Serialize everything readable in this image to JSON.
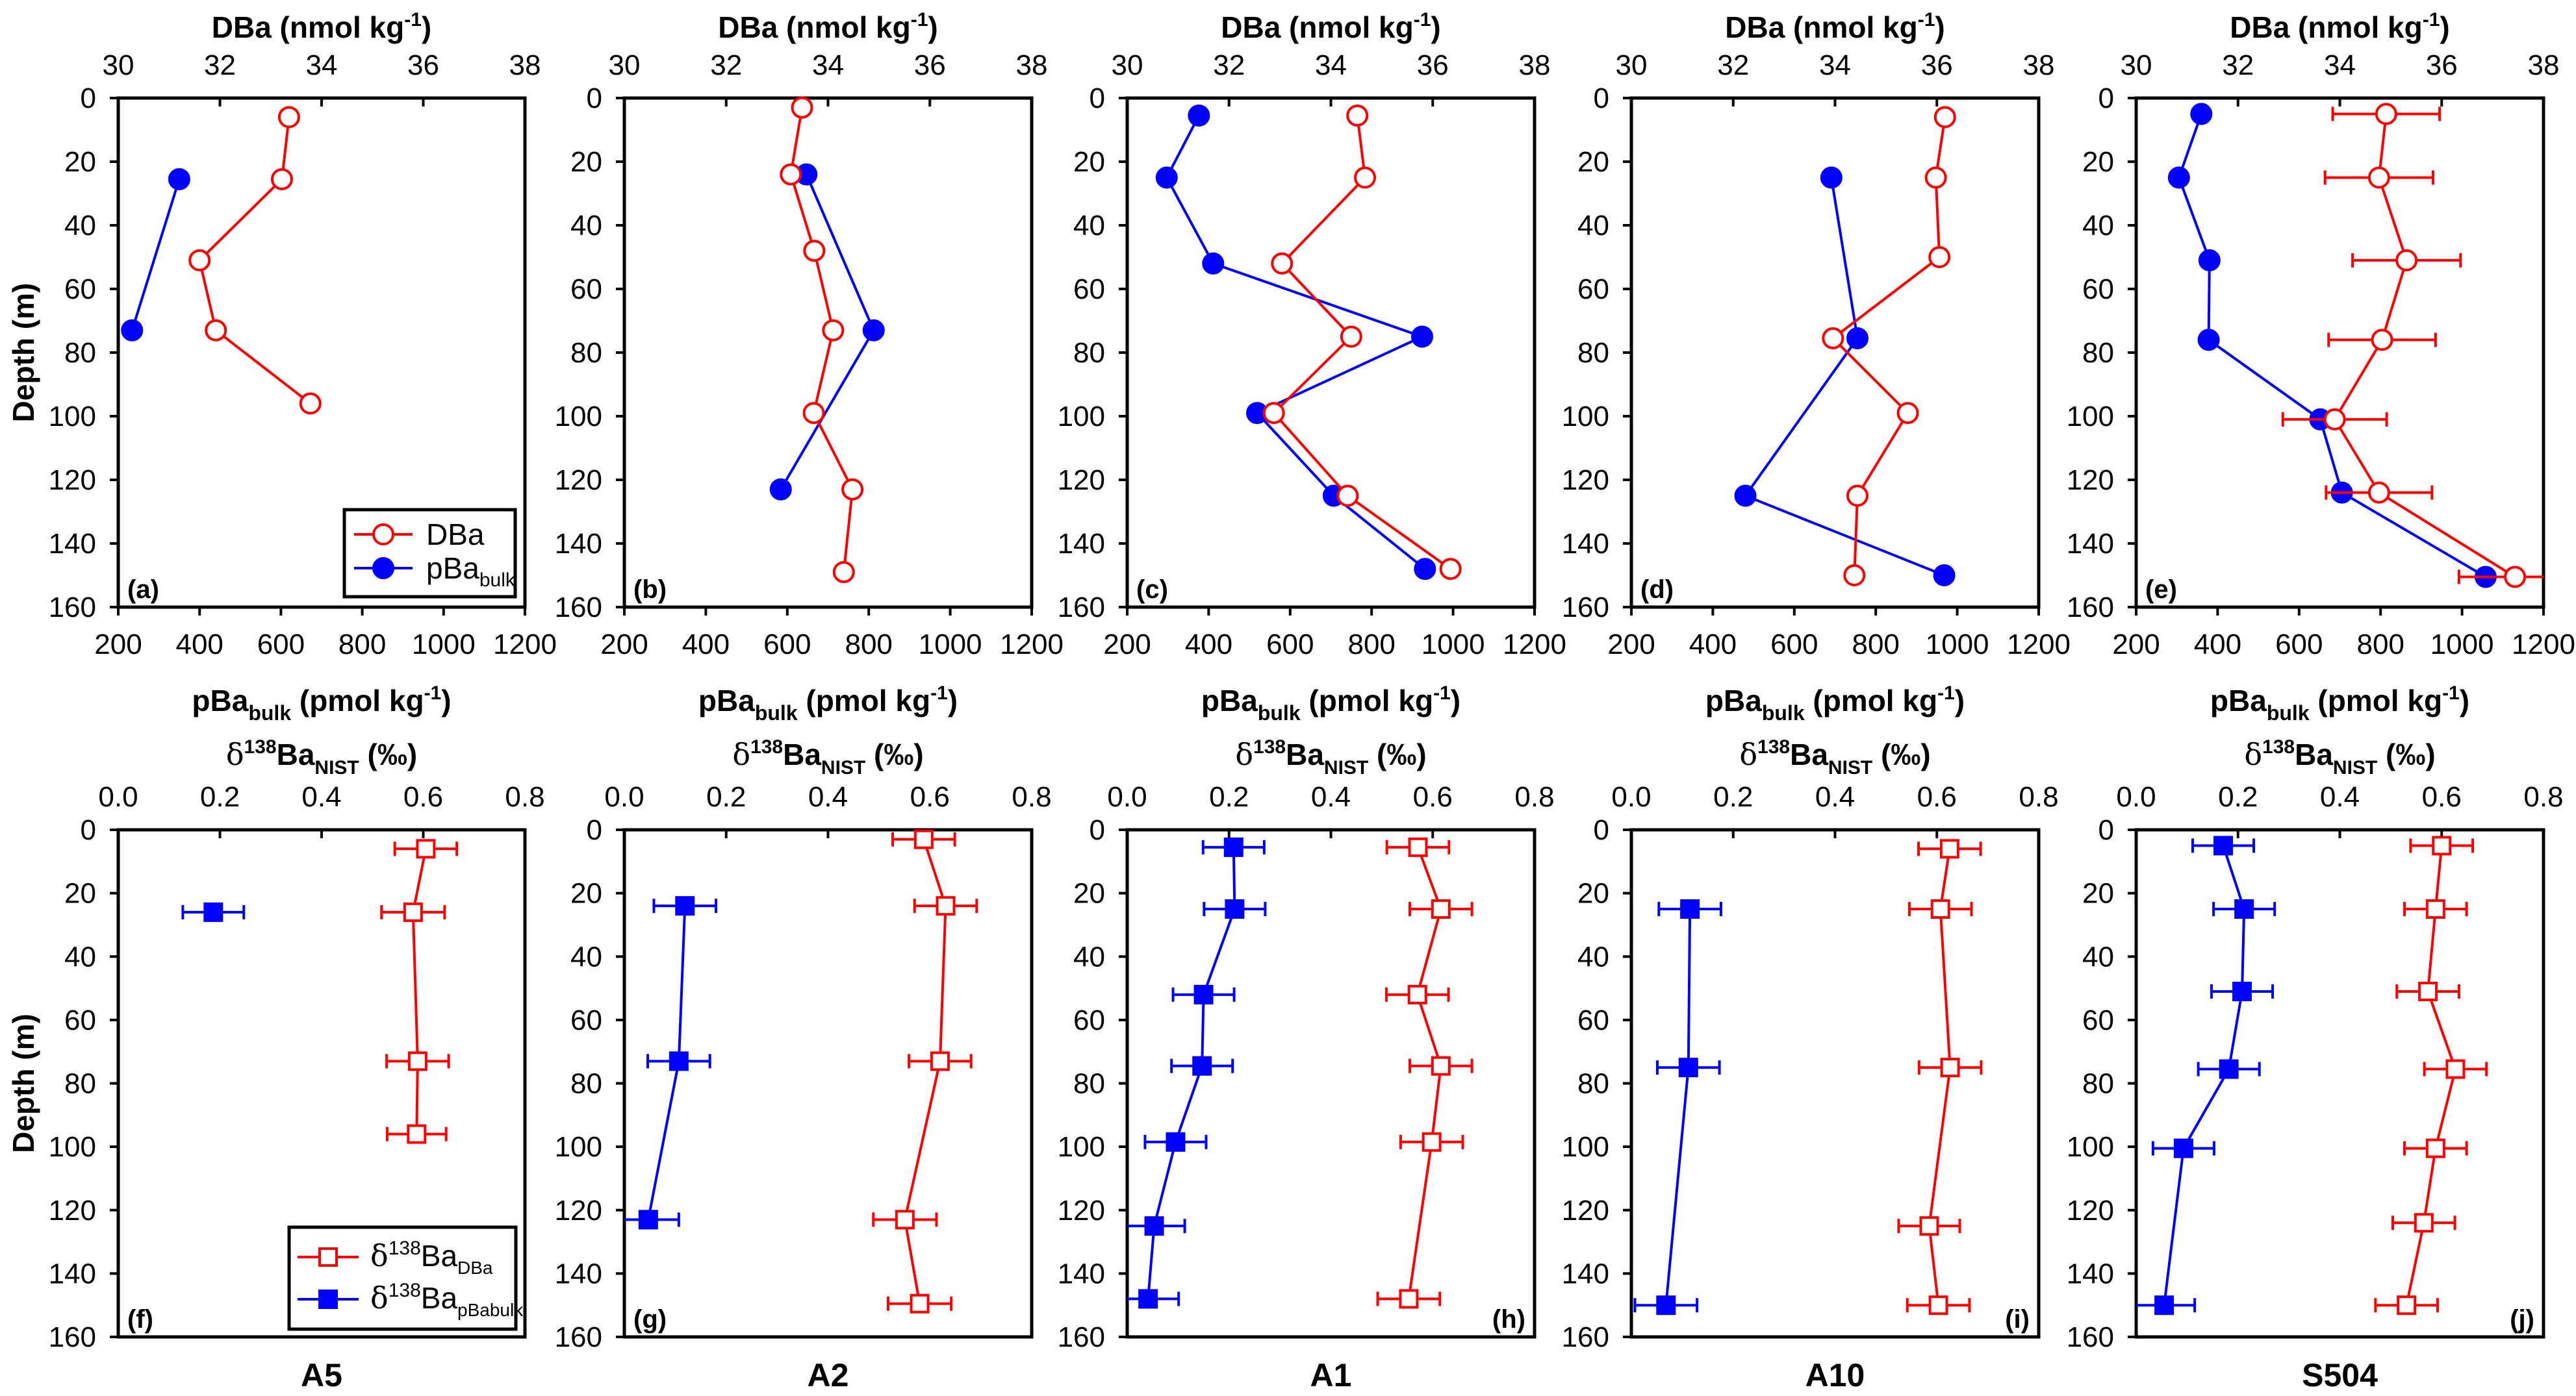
{
  "figure": {
    "ylabel": "Depth (m)",
    "top_row": {
      "top_axis_title": "DBa (nmol kg⁻¹)",
      "top_axis_title_main": "DBa (nmol kg",
      "top_axis_title_sup": "-1",
      "top_axis_title_end": ")",
      "bottom_axis_title_main": "pBa",
      "bottom_axis_title_sub": "bulk",
      "bottom_axis_title_rest": " (pmol kg",
      "bottom_axis_title_sup": "-1",
      "bottom_axis_title_end": ")",
      "legend": [
        {
          "label": "DBa",
          "sub": "",
          "color": "#ff0000",
          "marker": "open-circle"
        },
        {
          "label": "pBa",
          "sub": "bulk",
          "color": "#0000ff",
          "marker": "filled-circle"
        }
      ]
    },
    "bottom_row": {
      "top_axis_title_delta": "δ",
      "top_axis_title_sup": "138",
      "top_axis_title_main": "Ba",
      "top_axis_title_sub": "NIST",
      "top_axis_title_end": " (‰)",
      "legend": [
        {
          "delta": "δ",
          "sup": "138",
          "label": "Ba",
          "sub": "DBa",
          "color": "#ff0000",
          "marker": "open-square"
        },
        {
          "delta": "δ",
          "sup": "138",
          "label": "Ba",
          "sub": "pBabulk",
          "color": "#0000ff",
          "marker": "filled-square"
        }
      ]
    },
    "stations": [
      "A5",
      "A2",
      "A1",
      "A10",
      "S504"
    ]
  },
  "chart_data": [
    {
      "panel": "(a)",
      "station": "A5",
      "type": "line",
      "title": "",
      "xlabel_top": "DBa (nmol kg-1)",
      "xlabel_bottom": "pBa_bulk (pmol kg-1)",
      "ylabel": "Depth (m)",
      "xlim_top": [
        30,
        38
      ],
      "xticks_top": [
        "30",
        "32",
        "34",
        "36",
        "38"
      ],
      "xlim_bottom": [
        200,
        1200
      ],
      "xticks_bottom": [
        "200",
        "400",
        "600",
        "800",
        "1000",
        "1200"
      ],
      "ylim": [
        160,
        0
      ],
      "yticks": [
        "0",
        "20",
        "40",
        "60",
        "80",
        "100",
        "120",
        "140",
        "160"
      ],
      "legend_position": "bottom-right",
      "series": [
        {
          "name": "DBa",
          "axis": "top",
          "depth": [
            6,
            25.5,
            51,
            73,
            96
          ],
          "values": [
            33.36,
            33.22,
            31.6,
            31.92,
            33.78
          ],
          "errors": null
        },
        {
          "name": "pBa_bulk",
          "axis": "bottom",
          "depth": [
            25.5,
            73
          ],
          "values": [
            350,
            234
          ],
          "errors": null
        }
      ]
    },
    {
      "panel": "(b)",
      "station": "A2",
      "type": "line",
      "xlim_top": [
        30,
        38
      ],
      "xticks_top": [
        "30",
        "32",
        "34",
        "36",
        "38"
      ],
      "xlim_bottom": [
        200,
        1200
      ],
      "xticks_bottom": [
        "200",
        "400",
        "600",
        "800",
        "1000",
        "1200"
      ],
      "ylim": [
        160,
        0
      ],
      "yticks": [
        "0",
        "20",
        "40",
        "60",
        "80",
        "100",
        "120",
        "140",
        "160"
      ],
      "series": [
        {
          "name": "DBa",
          "axis": "top",
          "depth": [
            3,
            24,
            48,
            73,
            99,
            123,
            149
          ],
          "values": [
            33.49,
            33.27,
            33.73,
            34.1,
            33.72,
            34.48,
            34.31
          ],
          "errors": null
        },
        {
          "name": "pBa_bulk",
          "axis": "bottom",
          "depth": [
            24,
            73,
            123
          ],
          "values": [
            647,
            812,
            584
          ],
          "errors": null
        }
      ]
    },
    {
      "panel": "(c)",
      "station": "A1",
      "type": "line",
      "xlim_top": [
        30,
        38
      ],
      "xticks_top": [
        "30",
        "32",
        "34",
        "36",
        "38"
      ],
      "xlim_bottom": [
        200,
        1200
      ],
      "xticks_bottom": [
        "200",
        "400",
        "600",
        "800",
        "1000",
        "1200"
      ],
      "ylim": [
        160,
        0
      ],
      "yticks": [
        "0",
        "20",
        "40",
        "60",
        "80",
        "100",
        "120",
        "140",
        "160"
      ],
      "series": [
        {
          "name": "DBa",
          "axis": "top",
          "depth": [
            5.5,
            25,
            52,
            75,
            99,
            125,
            148
          ],
          "values": [
            34.52,
            34.67,
            33.04,
            34.4,
            32.88,
            34.33,
            36.35
          ],
          "errors": null
        },
        {
          "name": "pBa_bulk",
          "axis": "bottom",
          "depth": [
            5.5,
            25,
            52,
            75,
            99,
            125,
            148
          ],
          "values": [
            376,
            297,
            411,
            924,
            519,
            707,
            931
          ],
          "errors": null
        }
      ]
    },
    {
      "panel": "(d)",
      "station": "A10",
      "type": "line",
      "xlim_top": [
        30,
        38
      ],
      "xticks_top": [
        "30",
        "32",
        "34",
        "36",
        "38"
      ],
      "xlim_bottom": [
        200,
        1200
      ],
      "xticks_bottom": [
        "200",
        "400",
        "600",
        "800",
        "1000",
        "1200"
      ],
      "ylim": [
        160,
        0
      ],
      "yticks": [
        "0",
        "20",
        "40",
        "60",
        "80",
        "100",
        "120",
        "140",
        "160"
      ],
      "series": [
        {
          "name": "DBa",
          "axis": "top",
          "depth": [
            6,
            25,
            50,
            75.5,
            99,
            125,
            150
          ],
          "values": [
            36.16,
            35.98,
            36.05,
            33.96,
            35.43,
            34.44,
            34.38
          ],
          "errors": null
        },
        {
          "name": "pBa_bulk",
          "axis": "bottom",
          "depth": [
            25,
            75.5,
            125,
            150
          ],
          "values": [
            691,
            755,
            480,
            968
          ],
          "errors": null
        }
      ]
    },
    {
      "panel": "(e)",
      "station": "S504",
      "type": "line",
      "xlim_top": [
        30,
        38
      ],
      "xticks_top": [
        "30",
        "32",
        "34",
        "36",
        "38"
      ],
      "xlim_bottom": [
        200,
        1200
      ],
      "xticks_bottom": [
        "200",
        "400",
        "600",
        "800",
        "1000",
        "1200"
      ],
      "ylim": [
        160,
        0
      ],
      "yticks": [
        "0",
        "20",
        "40",
        "60",
        "80",
        "100",
        "120",
        "140",
        "160"
      ],
      "series": [
        {
          "name": "DBa",
          "axis": "top",
          "depth": [
            5,
            25,
            51,
            76,
            101,
            124,
            150.5
          ],
          "values": [
            34.91,
            34.77,
            35.31,
            34.83,
            33.9,
            34.77,
            37.44
          ],
          "errors": [
            1.05,
            1.06,
            1.06,
            1.05,
            1.02,
            1.04,
            1.1
          ]
        },
        {
          "name": "pBa_bulk",
          "axis": "bottom",
          "depth": [
            5,
            25,
            51,
            76,
            101,
            124,
            150.5
          ],
          "values": [
            360,
            305,
            380,
            378,
            652,
            705,
            1058
          ],
          "errors": null
        }
      ]
    },
    {
      "panel": "(f)",
      "station": "A5",
      "type": "line",
      "xlabel_top": "δ138Ba_NIST (‰)",
      "xlim": [
        0,
        0.8
      ],
      "xticks": [
        "0.0",
        "0.2",
        "0.4",
        "0.6",
        "0.8"
      ],
      "ylim": [
        160,
        0
      ],
      "yticks": [
        "0",
        "20",
        "40",
        "60",
        "80",
        "100",
        "120",
        "140",
        "160"
      ],
      "legend_position": "bottom-right",
      "series": [
        {
          "name": "δ138Ba_DBa",
          "depth": [
            6,
            26,
            73,
            96
          ],
          "values": [
            0.605,
            0.58,
            0.589,
            0.587
          ],
          "errors": [
            0.061,
            0.062,
            0.061,
            0.058
          ]
        },
        {
          "name": "δ138Ba_pBabulk",
          "depth": [
            26
          ],
          "values": [
            0.187
          ],
          "errors": [
            0.06
          ]
        }
      ]
    },
    {
      "panel": "(g)",
      "station": "A2",
      "type": "line",
      "xlim": [
        0,
        0.8
      ],
      "xticks": [
        "0.0",
        "0.2",
        "0.4",
        "0.6",
        "0.8"
      ],
      "ylim": [
        160,
        0
      ],
      "yticks": [
        "0",
        "20",
        "40",
        "60",
        "80",
        "100",
        "120",
        "140",
        "160"
      ],
      "series": [
        {
          "name": "δ138Ba_DBa",
          "depth": [
            3,
            24,
            73,
            123,
            149.5
          ],
          "values": [
            0.588,
            0.631,
            0.62,
            0.551,
            0.58
          ],
          "errors": [
            0.061,
            0.061,
            0.061,
            0.062,
            0.062
          ]
        },
        {
          "name": "δ138Ba_pBabulk",
          "depth": [
            24,
            73,
            123
          ],
          "values": [
            0.119,
            0.107,
            0.047
          ],
          "errors": [
            0.061,
            0.061,
            0.06
          ]
        }
      ]
    },
    {
      "panel": "(h)",
      "station": "A1",
      "type": "line",
      "xlim": [
        0,
        0.8
      ],
      "xticks": [
        "0.0",
        "0.2",
        "0.4",
        "0.6",
        "0.8"
      ],
      "ylim": [
        160,
        0
      ],
      "yticks": [
        "0",
        "20",
        "40",
        "60",
        "80",
        "100",
        "120",
        "140",
        "160"
      ],
      "series": [
        {
          "name": "δ138Ba_DBa",
          "depth": [
            5.5,
            25,
            52,
            74.5,
            98.5,
            148
          ],
          "values": [
            0.571,
            0.616,
            0.57,
            0.616,
            0.598,
            0.553
          ],
          "errors": [
            0.061,
            0.061,
            0.061,
            0.061,
            0.061,
            0.061
          ]
        },
        {
          "name": "δ138Ba_pBabulk",
          "depth": [
            5.5,
            25,
            52,
            74.5,
            98.5,
            125,
            148
          ],
          "values": [
            0.209,
            0.211,
            0.15,
            0.147,
            0.095,
            0.053,
            0.041
          ],
          "errors": [
            0.06,
            0.06,
            0.06,
            0.06,
            0.06,
            0.06,
            0.06
          ]
        }
      ]
    },
    {
      "panel": "(i)",
      "station": "A10",
      "type": "line",
      "xlim": [
        0,
        0.8
      ],
      "xticks": [
        "0.0",
        "0.2",
        "0.4",
        "0.6",
        "0.8"
      ],
      "ylim": [
        160,
        0
      ],
      "yticks": [
        "0",
        "20",
        "40",
        "60",
        "80",
        "100",
        "120",
        "140",
        "160"
      ],
      "series": [
        {
          "name": "δ138Ba_DBa",
          "depth": [
            6,
            25,
            75,
            125,
            150
          ],
          "values": [
            0.625,
            0.607,
            0.626,
            0.585,
            0.603
          ],
          "errors": [
            0.061,
            0.061,
            0.061,
            0.06,
            0.061
          ]
        },
        {
          "name": "δ138Ba_pBabulk",
          "depth": [
            25,
            75,
            150
          ],
          "values": [
            0.115,
            0.112,
            0.068
          ],
          "errors": [
            0.061,
            0.061,
            0.061
          ]
        }
      ]
    },
    {
      "panel": "(j)",
      "station": "S504",
      "type": "line",
      "xlim": [
        0,
        0.8
      ],
      "xticks": [
        "0.0",
        "0.2",
        "0.4",
        "0.6",
        "0.8"
      ],
      "ylim": [
        160,
        0
      ],
      "yticks": [
        "0",
        "20",
        "40",
        "60",
        "80",
        "100",
        "120",
        "140",
        "160"
      ],
      "series": [
        {
          "name": "δ138Ba_DBa",
          "depth": [
            5,
            25,
            51,
            75.5,
            100.5,
            124,
            150
          ],
          "values": [
            0.6,
            0.588,
            0.573,
            0.627,
            0.588,
            0.565,
            0.531
          ],
          "errors": [
            0.061,
            0.061,
            0.061,
            0.061,
            0.061,
            0.061,
            0.061
          ]
        },
        {
          "name": "δ138Ba_pBabulk",
          "depth": [
            5,
            25,
            51,
            75.5,
            100.5,
            150
          ],
          "values": [
            0.171,
            0.212,
            0.208,
            0.182,
            0.093,
            0.055
          ],
          "errors": [
            0.06,
            0.06,
            0.06,
            0.06,
            0.06,
            0.06
          ]
        }
      ]
    }
  ]
}
